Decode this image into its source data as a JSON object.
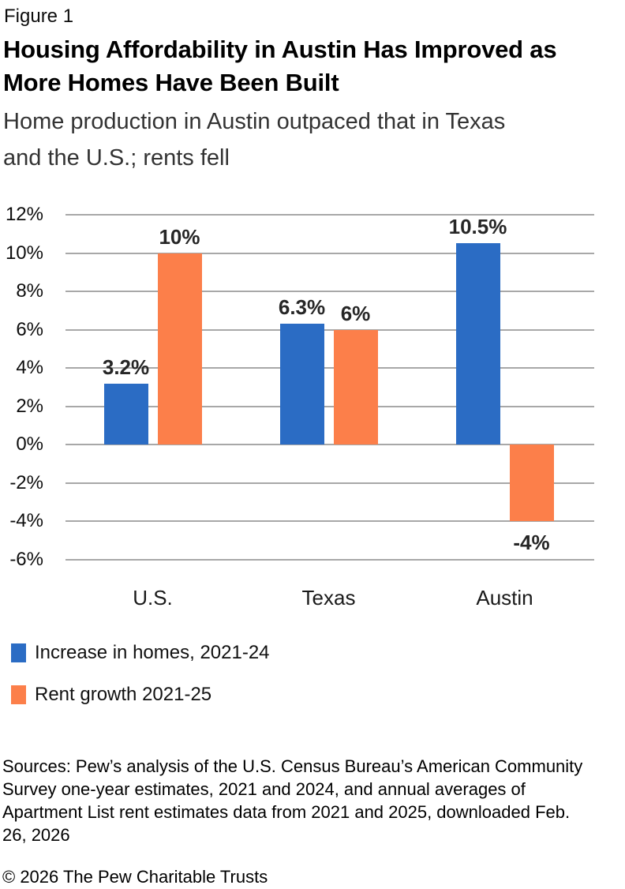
{
  "figure_label": "Figure 1",
  "title": "Housing Affordability in Austin Has Improved as\nMore Homes Have Been Built",
  "subtitle": "Home production in Austin outpaced that in Texas\nand the U.S.; rents fell",
  "chart_data": {
    "type": "bar",
    "title": "Housing Affordability in Austin Has Improved as More Homes Have Been Built",
    "categories": [
      "U.S.",
      "Texas",
      "Austin"
    ],
    "series": [
      {
        "name": "Increase in homes, 2021-24",
        "color": "#2b6cc4",
        "values": [
          3.2,
          6.3,
          10.5
        ],
        "value_labels": [
          "3.2%",
          "6.3%",
          "10.5%"
        ]
      },
      {
        "name": "Rent growth 2021-25",
        "color": "#fc7f4a",
        "values": [
          10,
          6,
          -4
        ],
        "value_labels": [
          "10%",
          "6%",
          "-4%"
        ]
      }
    ],
    "xlabel": "",
    "ylabel": "",
    "ylim": [
      -6,
      12
    ],
    "y_ticks": [
      12,
      10,
      8,
      6,
      4,
      2,
      0,
      -2,
      -4,
      -6
    ],
    "y_tick_labels": [
      "12%",
      "10%",
      "8%",
      "6%",
      "4%",
      "2%",
      "0%",
      "-2%",
      "-4%",
      "-6%"
    ],
    "grid": true,
    "legend_position": "bottom-left"
  },
  "legend": {
    "items": [
      {
        "label": "Increase in homes, 2021-24",
        "color": "#2b6cc4"
      },
      {
        "label": "Rent growth 2021-25",
        "color": "#fc7f4a"
      }
    ]
  },
  "sources": "Sources: Pew’s analysis of the U.S. Census Bureau’s American Community\nSurvey one-year estimates, 2021 and 2024, and annual averages of\nApartment List rent estimates data from 2021 and 2025, downloaded Feb.\n26, 2026",
  "copyright": "© 2026 The Pew Charitable Trusts",
  "colors": {
    "homes_blue": "#2b6cc4",
    "rent_orange": "#fc7f4a",
    "gridline_gray": "#a8a8a8"
  }
}
